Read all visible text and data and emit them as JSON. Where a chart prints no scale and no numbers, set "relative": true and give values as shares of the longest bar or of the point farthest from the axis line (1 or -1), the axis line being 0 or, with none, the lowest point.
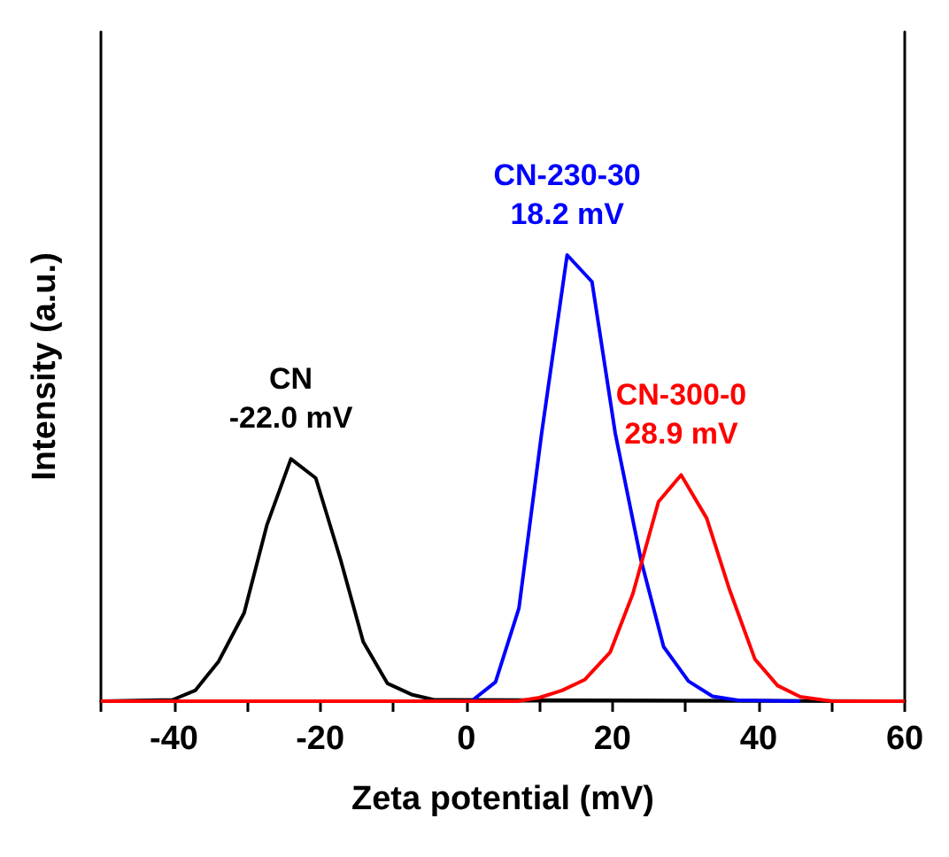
{
  "chart_data": {
    "type": "line",
    "relative": true,
    "xlabel": "Zeta potential (mV)",
    "ylabel": "Intensity (a.u.)",
    "xlim": [
      -50,
      60
    ],
    "xticks": [
      {
        "value": -50,
        "label": null
      },
      -40,
      {
        "value": -30,
        "label": null
      },
      -20,
      {
        "value": -10,
        "label": null
      },
      0,
      {
        "value": 10,
        "label": null
      },
      20,
      {
        "value": 30,
        "label": null
      },
      40,
      {
        "value": 50,
        "label": null
      },
      60
    ],
    "tick_labels": "x",
    "grid": false,
    "legend": false,
    "marker": "none",
    "line_style": "solid",
    "series": [
      {
        "name": "CN",
        "color": "#000000",
        "x": [
          -50,
          -40.2,
          -37.1,
          -33.9,
          -30.4,
          -27.3,
          -24.0,
          -20.6,
          -17.2,
          -14.1,
          -10.8,
          -7.5,
          -4.4,
          60
        ],
        "values": [
          0,
          0.003,
          0.024,
          0.089,
          0.198,
          0.394,
          0.543,
          0.5,
          0.317,
          0.133,
          0.04,
          0.015,
          0.003,
          0
        ]
      },
      {
        "name": "CN-230-30",
        "color": "#0000ff",
        "x": [
          1.0,
          4.0,
          7.2,
          10.3,
          13.8,
          17.2,
          20.4,
          23.9,
          27.0,
          30.4,
          33.7,
          37.2,
          45.7
        ],
        "values": [
          0.004,
          0.043,
          0.208,
          0.599,
          1,
          0.94,
          0.599,
          0.317,
          0.122,
          0.045,
          0.011,
          0.002,
          0
        ]
      },
      {
        "name": "CN-300-0",
        "color": "#ff0000",
        "x": [
          -50,
          7.0,
          10.0,
          13.1,
          16.2,
          19.7,
          22.8,
          26.3,
          29.4,
          32.9,
          36.0,
          39.5,
          42.6,
          45.7,
          50,
          60
        ],
        "values": [
          0,
          0,
          0.008,
          0.024,
          0.048,
          0.11,
          0.241,
          0.447,
          0.507,
          0.41,
          0.251,
          0.094,
          0.035,
          0.01,
          0,
          0
        ]
      }
    ],
    "annotations": [
      "-22.0 mV",
      "18.2 mV",
      "28.9 mV"
    ]
  }
}
